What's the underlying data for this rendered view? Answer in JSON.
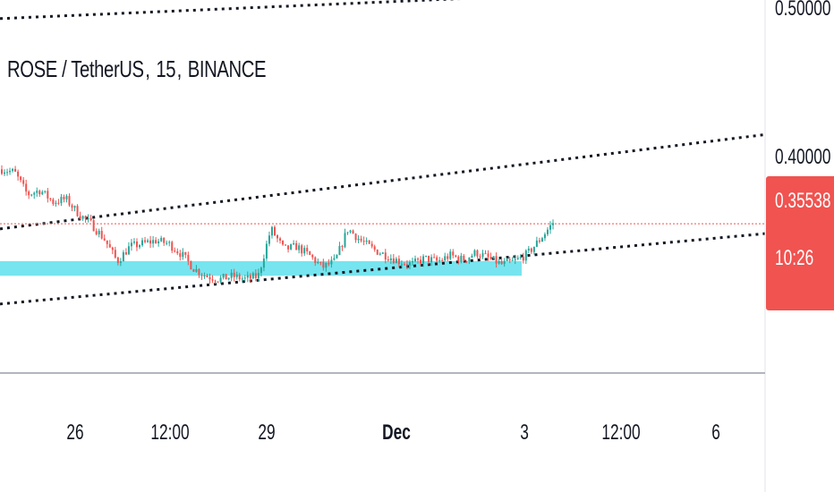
{
  "legend": {
    "symbol": "ROSE / TetherUS",
    "interval": "15",
    "exchange": "BINANCE"
  },
  "price_badge": {
    "price": "0.35538",
    "countdown": "10:26"
  },
  "colors": {
    "candle_up": "#26a69a",
    "candle_down": "#ef5350",
    "zone": "#5ee0ec",
    "badge": "#f05350",
    "last_price_line": "#f05350",
    "trendline": "#131722"
  },
  "chart_data": {
    "type": "candlestick",
    "y_axis": {
      "ticks": [
        {
          "value": 0.5,
          "label": "0.50000"
        },
        {
          "value": 0.4,
          "label": "0.40000"
        }
      ],
      "range": [
        0.28,
        0.5
      ]
    },
    "x_axis": {
      "ticks": [
        {
          "label": "26",
          "bold": false
        },
        {
          "label": "12:00",
          "bold": false
        },
        {
          "label": "29",
          "bold": false
        },
        {
          "label": "Dec",
          "bold": true
        },
        {
          "label": "3",
          "bold": false
        },
        {
          "label": "12:00",
          "bold": false
        },
        {
          "label": "6",
          "bold": false
        }
      ]
    },
    "last_price": 0.35538,
    "price_path": [
      0.392,
      0.39,
      0.375,
      0.378,
      0.37,
      0.372,
      0.362,
      0.355,
      0.345,
      0.33,
      0.34,
      0.342,
      0.344,
      0.342,
      0.335,
      0.325,
      0.32,
      0.318,
      0.32,
      0.318,
      0.32,
      0.352,
      0.338,
      0.34,
      0.334,
      0.326,
      0.33,
      0.352,
      0.344,
      0.338,
      0.334,
      0.33,
      0.328,
      0.332,
      0.33,
      0.334,
      0.331,
      0.336,
      0.332,
      0.328,
      0.33,
      0.335,
      0.345,
      0.356
    ],
    "support_zone": {
      "low": 0.3203,
      "high": 0.3302
    },
    "channel_lines": [
      {
        "start": 0.4935,
        "end": 0.5158
      },
      {
        "start": 0.3519,
        "end": 0.4154
      },
      {
        "start": 0.3013,
        "end": 0.3487
      }
    ]
  }
}
